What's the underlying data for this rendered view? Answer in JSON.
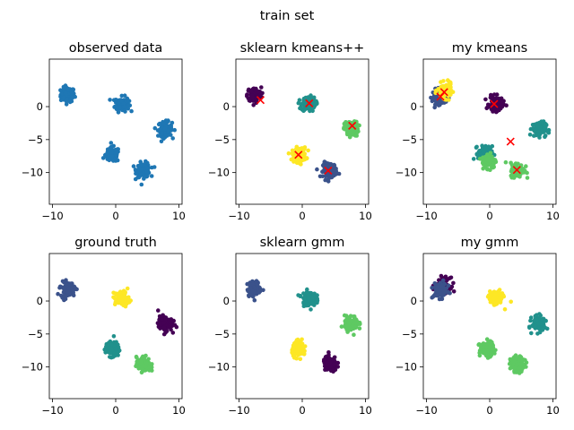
{
  "figure": {
    "suptitle": "train set"
  },
  "axes_common": {
    "xlim": [
      -10.5,
      10.5
    ],
    "ylim": [
      -14.8,
      7.2
    ],
    "xticks": [
      -10,
      0,
      10
    ],
    "yticks": [
      0,
      -5,
      -10
    ]
  },
  "chart_data": [
    {
      "type": "scatter",
      "title": "observed data",
      "clusters": [
        {
          "center": [
            -7.6,
            1.8
          ],
          "color": "#1f77b4"
        },
        {
          "center": [
            1.0,
            0.4
          ],
          "color": "#1f77b4"
        },
        {
          "center": [
            7.8,
            -3.4
          ],
          "color": "#1f77b4"
        },
        {
          "center": [
            -0.5,
            -7.3
          ],
          "color": "#1f77b4"
        },
        {
          "center": [
            4.4,
            -9.6
          ],
          "color": "#1f77b4"
        }
      ],
      "centroids": []
    },
    {
      "type": "scatter",
      "title": "sklearn kmeans++",
      "clusters": [
        {
          "center": [
            -7.6,
            1.8
          ],
          "color": "#440154"
        },
        {
          "center": [
            1.0,
            0.4
          ],
          "color": "#21918c"
        },
        {
          "center": [
            7.8,
            -3.4
          ],
          "color": "#5ec962"
        },
        {
          "center": [
            -0.5,
            -7.3
          ],
          "color": "#fde725"
        },
        {
          "center": [
            4.4,
            -9.6
          ],
          "color": "#3b528b"
        }
      ],
      "centroids": [
        [
          -6.6,
          1.0
        ],
        [
          1.1,
          0.5
        ],
        [
          7.9,
          -2.9
        ],
        [
          -0.6,
          -7.3
        ],
        [
          4.1,
          -9.7
        ]
      ]
    },
    {
      "type": "scatter",
      "title": "my kmeans",
      "clusters": [
        {
          "center": [
            -8.0,
            1.5
          ],
          "color": "#3b528b"
        },
        {
          "center": [
            -7.1,
            2.4
          ],
          "color": "#fde725"
        },
        {
          "center": [
            1.0,
            0.4
          ],
          "color": "#440154"
        },
        {
          "center": [
            7.8,
            -3.4
          ],
          "color": "#21918c"
        },
        {
          "center": [
            -0.7,
            -7.1
          ],
          "color": "#21918c"
        },
        {
          "center": [
            -0.1,
            -8.2
          ],
          "color": "#5ec962"
        },
        {
          "center": [
            4.4,
            -9.6
          ],
          "color": "#5ec962"
        }
      ],
      "centroids": [
        [
          -7.8,
          1.5
        ],
        [
          -7.2,
          2.2
        ],
        [
          0.7,
          0.4
        ],
        [
          3.3,
          -5.3
        ],
        [
          4.3,
          -9.6
        ]
      ]
    },
    {
      "type": "scatter",
      "title": "ground truth",
      "clusters": [
        {
          "center": [
            -7.6,
            1.8
          ],
          "color": "#3b528b"
        },
        {
          "center": [
            1.0,
            0.4
          ],
          "color": "#fde725"
        },
        {
          "center": [
            7.8,
            -3.4
          ],
          "color": "#440154"
        },
        {
          "center": [
            -0.5,
            -7.3
          ],
          "color": "#21918c"
        },
        {
          "center": [
            4.4,
            -9.6
          ],
          "color": "#5ec962"
        }
      ],
      "centroids": []
    },
    {
      "type": "scatter",
      "title": "sklearn gmm",
      "clusters": [
        {
          "center": [
            -7.6,
            1.8
          ],
          "color": "#3b528b"
        },
        {
          "center": [
            1.0,
            0.4
          ],
          "color": "#21918c"
        },
        {
          "center": [
            7.8,
            -3.4
          ],
          "color": "#5ec962"
        },
        {
          "center": [
            -0.5,
            -7.3
          ],
          "color": "#fde725"
        },
        {
          "center": [
            4.4,
            -9.6
          ],
          "color": "#440154"
        }
      ],
      "centroids": []
    },
    {
      "type": "scatter",
      "title": "my gmm",
      "clusters": [
        {
          "center": [
            -7.4,
            2.4
          ],
          "color": "#440154"
        },
        {
          "center": [
            -7.8,
            1.6
          ],
          "color": "#3b528b"
        },
        {
          "center": [
            1.0,
            0.4
          ],
          "color": "#fde725"
        },
        {
          "center": [
            7.8,
            -3.4
          ],
          "color": "#21918c"
        },
        {
          "center": [
            -0.5,
            -7.3
          ],
          "color": "#5ec962"
        },
        {
          "center": [
            4.4,
            -9.6
          ],
          "color": "#5ec962"
        }
      ],
      "centroids": []
    }
  ]
}
